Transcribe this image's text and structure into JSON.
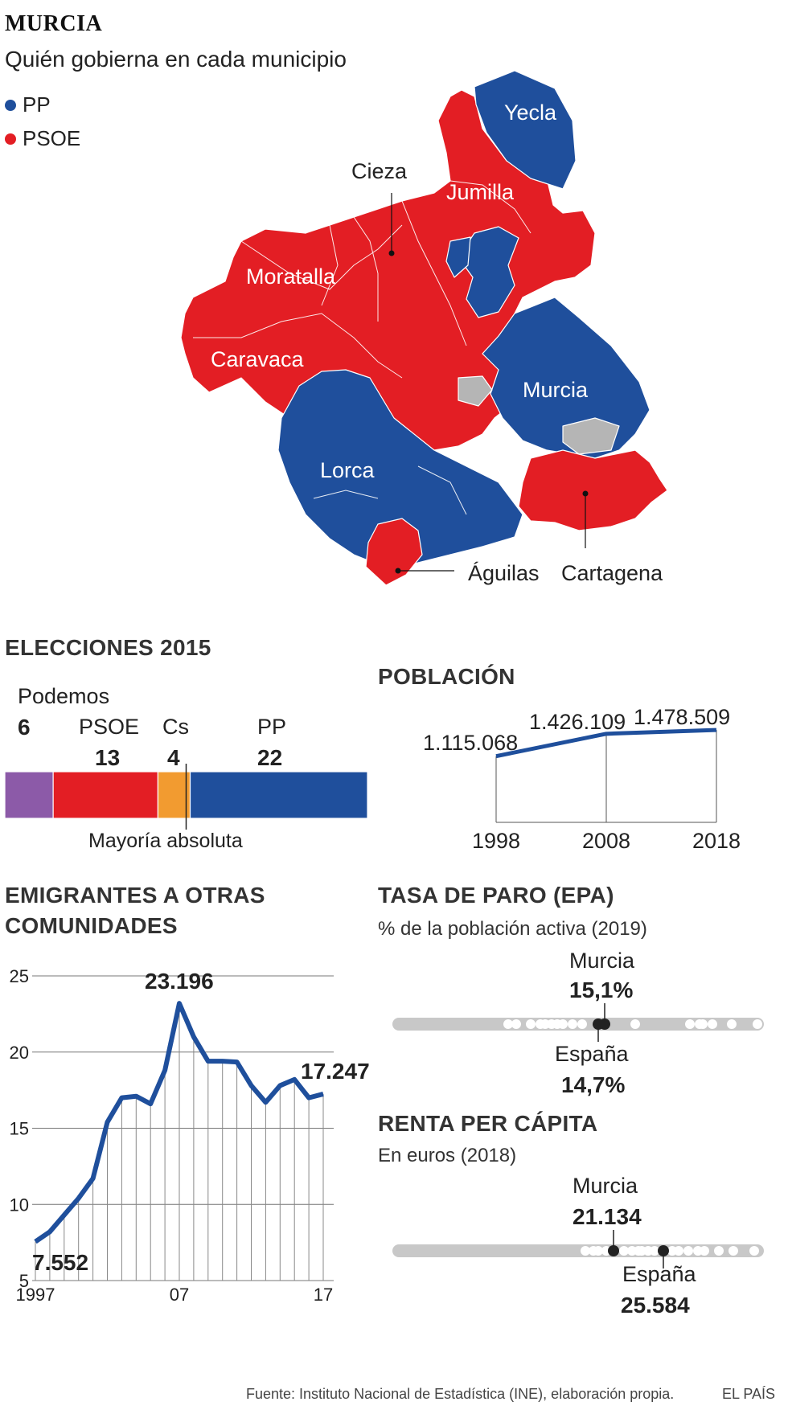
{
  "header": {
    "title": "MURCIA",
    "subtitle": "Quién gobierna en cada municipio"
  },
  "legend": [
    {
      "label": "PP",
      "color": "#1f4f9c"
    },
    {
      "label": "PSOE",
      "color": "#e31e24"
    }
  ],
  "colors": {
    "pp": "#1f4f9c",
    "psoe": "#e31e24",
    "none": "#b5b5b5",
    "podemos": "#8c5aa8",
    "cs": "#f29b30",
    "line": "#1f4f9c",
    "track": "#c8c8c8"
  },
  "map": {
    "labels": {
      "yecla": "Yecla",
      "jumilla": "Jumilla",
      "cieza": "Cieza",
      "moratalla": "Moratalla",
      "caravaca": "Caravaca",
      "murcia": "Murcia",
      "lorca": "Lorca",
      "aguilas": "Águilas",
      "cartagena": "Cartagena"
    }
  },
  "elections": {
    "title": "ELECCIONES 2015",
    "majority_label": "Mayoría absoluta",
    "parties": [
      {
        "name": "Podemos",
        "seats": "6",
        "color": "#8c5aa8"
      },
      {
        "name": "PSOE",
        "seats": "13",
        "color": "#e31e24"
      },
      {
        "name": "Cs",
        "seats": "4",
        "color": "#f29b30"
      },
      {
        "name": "PP",
        "seats": "22",
        "color": "#1f4f9c"
      }
    ],
    "total_seats": 45,
    "majority_seats": 23
  },
  "population": {
    "title": "POBLACIÓN",
    "points": [
      {
        "year": "1998",
        "label": "1.115.068",
        "value": 1115068
      },
      {
        "year": "2008",
        "label": "1.426.109",
        "value": 1426109
      },
      {
        "year": "2018",
        "label": "1.478.509",
        "value": 1478509
      }
    ]
  },
  "emigrants": {
    "title_line1": "EMIGRANTES A OTRAS",
    "title_line2": "COMUNIDADES",
    "first_label": "7.552",
    "peak_label": "23.196",
    "last_label": "17.247",
    "x_tick_labels": [
      "1997",
      "07",
      "17"
    ],
    "y_tick_labels": [
      "25",
      "20",
      "15",
      "10",
      "5"
    ]
  },
  "unemployment": {
    "title": "TASA DE PARO (EPA)",
    "subtitle": "% de la población activa (2019)",
    "murcia_label": "Murcia",
    "murcia_value": "15,1%",
    "spain_label": "España",
    "spain_value": "14,7%"
  },
  "income": {
    "title": "RENTA PER CÁPITA",
    "subtitle": "En euros (2018)",
    "murcia_label": "Murcia",
    "murcia_value": "21.134",
    "spain_label": "España",
    "spain_value": "25.584"
  },
  "footer": {
    "source": "Fuente: Instituto Nacional de Estadística (INE), elaboración propia.",
    "brand": "EL PAÍS"
  },
  "chart_data": [
    {
      "type": "bar",
      "title": "ELECCIONES 2015",
      "categories": [
        "Podemos",
        "PSOE",
        "Cs",
        "PP"
      ],
      "values": [
        6,
        13,
        4,
        22
      ],
      "orientation": "stacked-horizontal",
      "annotation": "Mayoría absoluta"
    },
    {
      "type": "line",
      "title": "POBLACIÓN",
      "x": [
        "1998",
        "2008",
        "2018"
      ],
      "series": [
        {
          "values": [
            1115068,
            1426109,
            1478509
          ]
        }
      ]
    },
    {
      "type": "line",
      "title": "EMIGRANTES A OTRAS COMUNIDADES",
      "x": [
        1997,
        1998,
        1999,
        2000,
        2001,
        2002,
        2003,
        2004,
        2005,
        2006,
        2007,
        2008,
        2009,
        2010,
        2011,
        2012,
        2013,
        2014,
        2015,
        2016,
        2017
      ],
      "series": [
        {
          "values": [
            7.552,
            8.2,
            9.3,
            10.4,
            11.7,
            15.4,
            17.0,
            17.1,
            16.6,
            18.8,
            23.196,
            21.0,
            19.4,
            19.4,
            19.35,
            17.8,
            16.7,
            17.8,
            18.2,
            17.0,
            17.247
          ]
        }
      ],
      "ylim": [
        5,
        25
      ],
      "yticks": [
        5,
        10,
        15,
        20,
        25
      ],
      "grid": true
    },
    {
      "type": "scatter",
      "title": "TASA DE PARO (EPA)",
      "subtitle": "% de la población activa (2019)",
      "highlights": [
        {
          "label": "Murcia",
          "value": 15.1
        },
        {
          "label": "España",
          "value": 14.7
        }
      ]
    },
    {
      "type": "scatter",
      "title": "RENTA PER CÁPITA",
      "subtitle": "En euros (2018)",
      "highlights": [
        {
          "label": "Murcia",
          "value": 21134
        },
        {
          "label": "España",
          "value": 25584
        }
      ]
    }
  ]
}
